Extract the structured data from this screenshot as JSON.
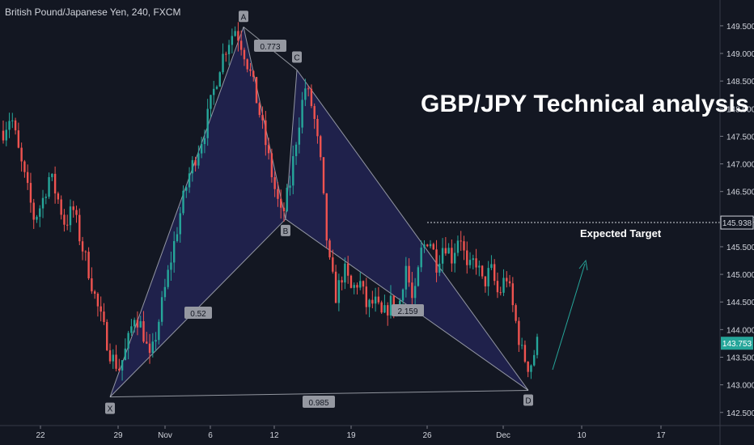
{
  "header": {
    "symbol": "British Pound/Japanese Yen, 240, FXCM"
  },
  "headline": "GBP/JPY Technical analysis",
  "target_text": "Expected Target",
  "colors": {
    "background": "#131722",
    "bull": "#26a69a",
    "bear": "#ef5350",
    "pattern_fill": "#2a2a6e",
    "pattern_line": "#b2b5be",
    "axis": "#d1d4dc",
    "current_price_bg": "#26a69a"
  },
  "chart_data": {
    "type": "candlestick",
    "title": "",
    "ylim": [
      142.35,
      149.85
    ],
    "y_ticks": [
      "142.500",
      "143.000",
      "143.500",
      "144.000",
      "144.500",
      "145.000",
      "145.500",
      "146.000",
      "146.500",
      "147.000",
      "147.500",
      "148.000",
      "148.500",
      "149.000",
      "149.500"
    ],
    "x_ticks": [
      "22",
      "29",
      "Nov",
      "6",
      "12",
      "19",
      "26",
      "Dec",
      "10",
      "17"
    ],
    "current_price": "143.753",
    "target_price": "145.938",
    "harmonic_pattern": {
      "points": [
        {
          "label": "X",
          "price": 142.78
        },
        {
          "label": "A",
          "price": 149.48
        },
        {
          "label": "B",
          "price": 146.0
        },
        {
          "label": "C",
          "price": 148.7
        },
        {
          "label": "D",
          "price": 142.9
        }
      ],
      "ratios": [
        {
          "name": "XB",
          "value": "0.52"
        },
        {
          "name": "AC",
          "value": "0.773"
        },
        {
          "name": "BD",
          "value": "2.159"
        },
        {
          "name": "XD",
          "value": "0.985"
        }
      ]
    },
    "price_path": [
      147.6,
      147.9,
      147.2,
      146.6,
      146.0,
      146.3,
      146.8,
      146.4,
      145.9,
      146.2,
      145.6,
      145.1,
      144.5,
      144.0,
      143.5,
      143.3,
      143.7,
      144.3,
      144.0,
      143.4,
      144.1,
      144.8,
      145.5,
      146.2,
      146.8,
      147.2,
      147.6,
      148.2,
      148.8,
      149.2,
      149.45,
      149.1,
      148.6,
      148.0,
      147.3,
      146.6,
      146.0,
      146.6,
      147.6,
      148.4,
      148.0,
      147.0,
      145.3,
      144.6,
      145.1,
      144.7,
      144.9,
      144.4,
      144.5,
      144.2,
      144.5,
      144.3,
      145.2,
      144.4,
      145.4,
      145.7,
      145.2,
      145.6,
      145.3,
      145.8,
      145.0,
      145.3,
      144.8,
      145.1,
      144.6,
      145.0,
      144.3,
      143.6,
      143.3,
      143.75
    ]
  }
}
